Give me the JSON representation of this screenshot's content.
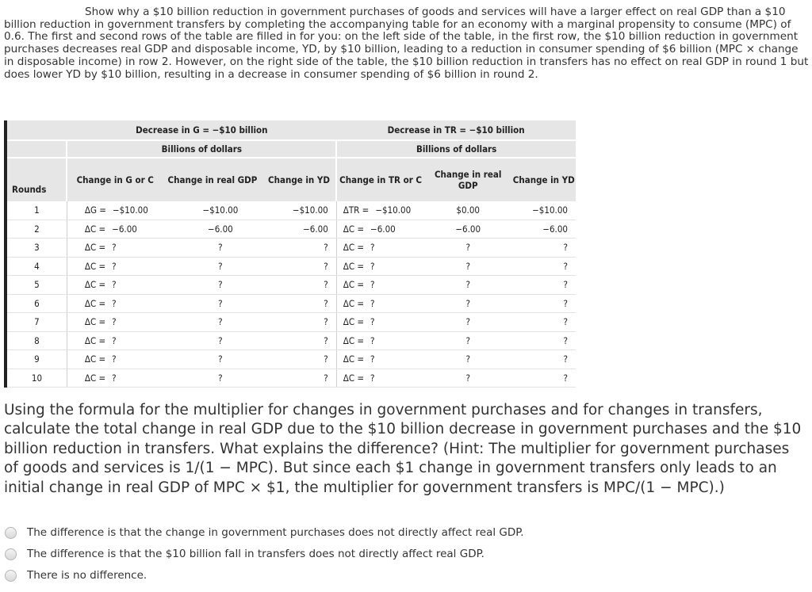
{
  "intro": "Show why a $10 billion reduction in government purchases of goods and services will have a larger effect on real GDP than a $10 billion reduction in government transfers by completing the accompanying table for an economy with a marginal propensity to consume (MPC) of 0.6. The first and second rows of the table are filled in for you: on the left side of the table, in the first row, the $10 billion reduction in government purchases decreases real GDP and disposable income, YD, by $10 billion, leading to a reduction in consumer spending of $6 billion (MPC × change in disposable income) in row 2. However, on the right side of the table, the $10 billion reduction in transfers has no effect on real GDP in round 1 but does lower YD by $10 billion, resulting in a decrease in consumer spending of $6 billion in round 2.",
  "table": {
    "left_title": "Decrease in G = −$10 billion",
    "right_title": "Decrease in TR = −$10 billion",
    "units": "Billions of dollars",
    "rounds_header": "Rounds",
    "headers": [
      "Change in G or C",
      "Change in real GDP",
      "Change in YD",
      "Change in TR or C",
      "Change in real GDP",
      "Change in YD"
    ],
    "rows": [
      {
        "round": "1",
        "g_label": "ΔG =",
        "g_val": "−$10.00",
        "g_gdp": "−$10.00",
        "g_yd": "−$10.00",
        "t_label": "ΔTR =",
        "t_val": "−$10.00",
        "t_gdp": "$0.00",
        "t_yd": "−$10.00"
      },
      {
        "round": "2",
        "g_label": "ΔC =",
        "g_val": "−6.00",
        "g_gdp": "−6.00",
        "g_yd": "−6.00",
        "t_label": "ΔC =",
        "t_val": "−6.00",
        "t_gdp": "−6.00",
        "t_yd": "−6.00"
      },
      {
        "round": "3",
        "g_label": "ΔC =",
        "g_val": "?",
        "g_gdp": "?",
        "g_yd": "?",
        "t_label": "ΔC =",
        "t_val": "?",
        "t_gdp": "?",
        "t_yd": "?"
      },
      {
        "round": "4",
        "g_label": "ΔC =",
        "g_val": "?",
        "g_gdp": "?",
        "g_yd": "?",
        "t_label": "ΔC =",
        "t_val": "?",
        "t_gdp": "?",
        "t_yd": "?"
      },
      {
        "round": "5",
        "g_label": "ΔC =",
        "g_val": "?",
        "g_gdp": "?",
        "g_yd": "?",
        "t_label": "ΔC =",
        "t_val": "?",
        "t_gdp": "?",
        "t_yd": "?"
      },
      {
        "round": "6",
        "g_label": "ΔC =",
        "g_val": "?",
        "g_gdp": "?",
        "g_yd": "?",
        "t_label": "ΔC =",
        "t_val": "?",
        "t_gdp": "?",
        "t_yd": "?"
      },
      {
        "round": "7",
        "g_label": "ΔC =",
        "g_val": "?",
        "g_gdp": "?",
        "g_yd": "?",
        "t_label": "ΔC =",
        "t_val": "?",
        "t_gdp": "?",
        "t_yd": "?"
      },
      {
        "round": "8",
        "g_label": "ΔC =",
        "g_val": "?",
        "g_gdp": "?",
        "g_yd": "?",
        "t_label": "ΔC =",
        "t_val": "?",
        "t_gdp": "?",
        "t_yd": "?"
      },
      {
        "round": "9",
        "g_label": "ΔC =",
        "g_val": "?",
        "g_gdp": "?",
        "g_yd": "?",
        "t_label": "ΔC =",
        "t_val": "?",
        "t_gdp": "?",
        "t_yd": "?"
      },
      {
        "round": "10",
        "g_label": "ΔC =",
        "g_val": "?",
        "g_gdp": "?",
        "g_yd": "?",
        "t_label": "ΔC =",
        "t_val": "?",
        "t_gdp": "?",
        "t_yd": "?"
      }
    ]
  },
  "question": "Using the formula for the multiplier for changes in government purchases and for changes in transfers, calculate the total change in real GDP due to the $10 billion decrease in government purchases and the $10 billion reduction in transfers. What explains the difference? (Hint: The multiplier for government purchases of goods and services is 1/(1 − MPC). But since each $1 change in government transfers only leads to an initial change in real GDP of MPC × $1, the multiplier for government transfers is MPC/(1 − MPC).)",
  "options": [
    "The difference is that the change in government purchases does not directly affect real GDP.",
    "The difference is that the $10 billion fall in transfers does not directly affect real GDP.",
    "There is no difference."
  ]
}
